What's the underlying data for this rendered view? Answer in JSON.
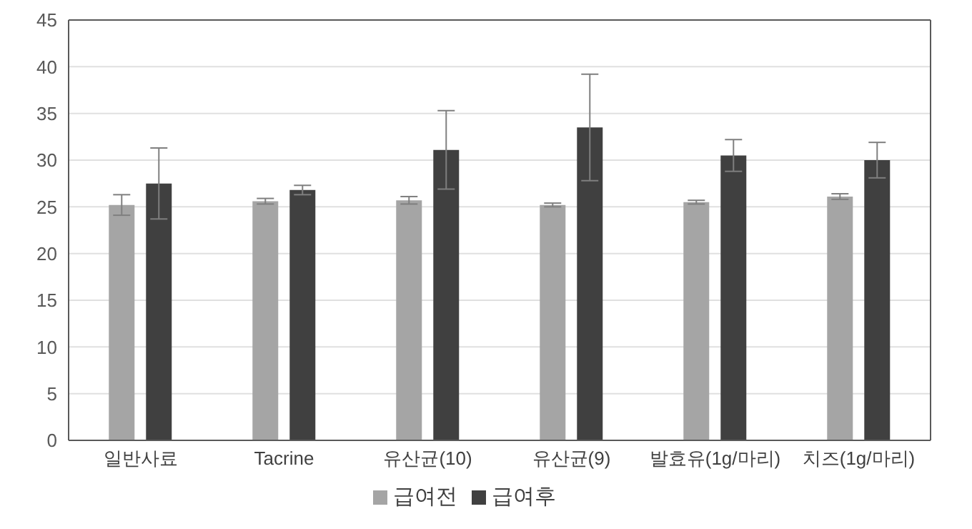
{
  "chart_data": {
    "type": "bar",
    "categories": [
      "일반사료",
      "Tacrine",
      "유산균(10)",
      "유산균(9)",
      "발효유(1g/마리)",
      "치즈(1g/마리)"
    ],
    "series": [
      {
        "name": "급여전",
        "color": "#a5a5a5",
        "values": [
          25.2,
          25.6,
          25.7,
          25.2,
          25.5,
          26.1
        ],
        "errors": [
          1.1,
          0.3,
          0.4,
          0.2,
          0.2,
          0.3
        ]
      },
      {
        "name": "급여후",
        "color": "#404040",
        "values": [
          27.5,
          26.8,
          31.1,
          33.5,
          30.5,
          30.0
        ],
        "errors": [
          3.8,
          0.5,
          4.2,
          5.7,
          1.7,
          1.9
        ]
      }
    ],
    "ylim": [
      0,
      45
    ],
    "yticks": [
      0,
      5,
      10,
      15,
      20,
      25,
      30,
      35,
      40,
      45
    ],
    "grid": "y",
    "legend": "bottom"
  }
}
